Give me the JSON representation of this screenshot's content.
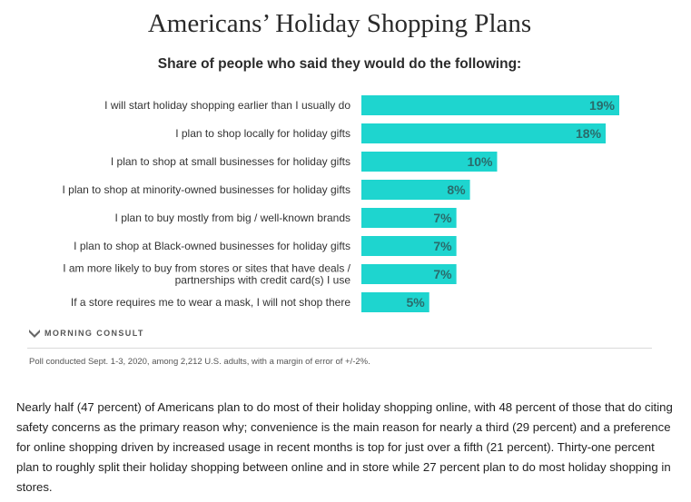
{
  "chart_data": {
    "type": "bar",
    "orientation": "horizontal",
    "title": "Americans’ Holiday Shopping Plans",
    "subtitle": "Share of people who said they would do the following:",
    "categories": [
      "I will start holiday shopping earlier than I usually do",
      "I plan to shop locally for holiday gifts",
      "I plan to shop at small businesses for holiday gifts",
      "I plan to shop at minority-owned businesses for holiday gifts",
      "I plan to buy mostly from big / well-known brands",
      "I plan to shop at Black-owned businesses for holiday gifts",
      "I am more likely to buy from stores or sites that have deals / partnerships with credit card(s) I use",
      "If a store requires me to wear a mask, I will not shop there"
    ],
    "category_lines": [
      [
        "I will start holiday shopping earlier than I usually do"
      ],
      [
        "I plan to shop locally for holiday gifts"
      ],
      [
        "I plan to shop at small businesses for holiday gifts"
      ],
      [
        "I plan to shop at minority-owned businesses for holiday gifts"
      ],
      [
        "I plan to buy mostly from big / well-known brands"
      ],
      [
        "I plan to shop at Black-owned businesses for holiday gifts"
      ],
      [
        "I am more likely to buy from stores or sites that have deals /",
        "partnerships with credit card(s) I use"
      ],
      [
        "If a store requires me to wear a mask, I will not shop there"
      ]
    ],
    "values": [
      19,
      18,
      10,
      8,
      7,
      7,
      7,
      5
    ],
    "data_labels": [
      "19%",
      "18%",
      "10%",
      "8%",
      "7%",
      "7%",
      "7%",
      "5%"
    ],
    "xlim": [
      0,
      19
    ],
    "grid": false,
    "bar_color": "#1ed5cf"
  },
  "brand": {
    "name": "MORNING CONSULT"
  },
  "footnote": "Poll conducted Sept. 1-3, 2020, among 2,212 U.S. adults, with a margin of error of +/-2%.",
  "article": "Nearly half (47 percent) of Americans plan to do most of their holiday shopping online, with 48 percent of those that do citing safety concerns as the primary reason why; convenience is the main reason for nearly a third (29 percent) and a preference for online shopping driven by increased usage in recent months is top for just over a fifth (21 percent). Thirty-one percent plan to roughly split their holiday shopping between online and in store while 27 percent plan to do most holiday shopping in stores."
}
